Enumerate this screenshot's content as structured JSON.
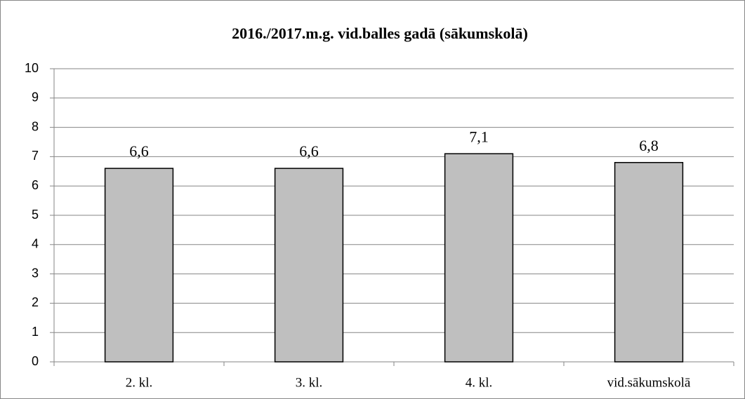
{
  "chart_data": {
    "type": "bar",
    "title": "2016./2017.m.g. vid.balles gadā (sākumskolā)",
    "categories": [
      "2. kl.",
      "3. kl.",
      "4. kl.",
      "vid.sākumskolā"
    ],
    "values": [
      6.6,
      6.6,
      7.1,
      6.8
    ],
    "value_labels": [
      "6,6",
      "6,6",
      "7,1",
      "6,8"
    ],
    "color": "#bfbfbf",
    "ylim": [
      0,
      10
    ],
    "yticks": [
      0,
      1,
      2,
      3,
      4,
      5,
      6,
      7,
      8,
      9,
      10
    ],
    "grid": true
  }
}
